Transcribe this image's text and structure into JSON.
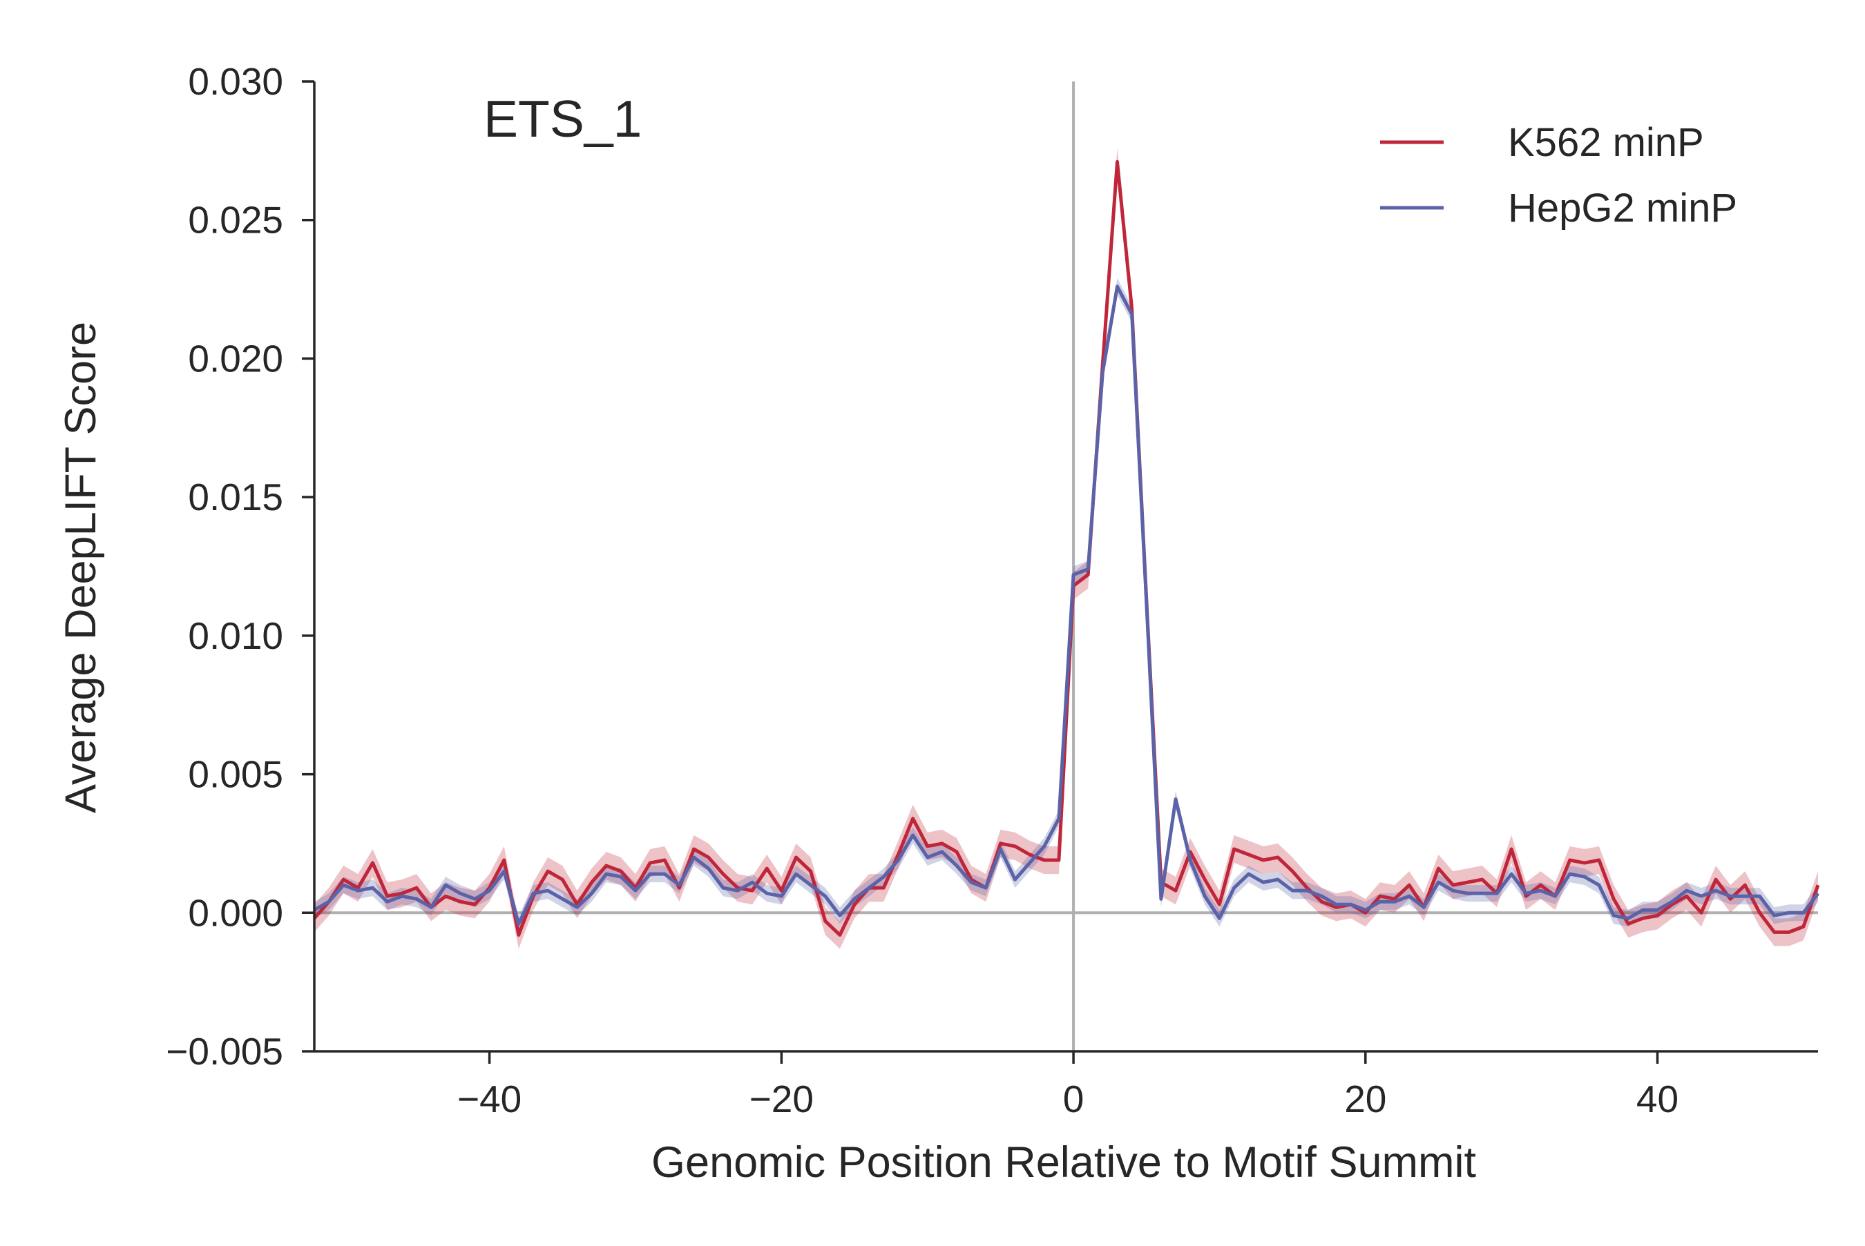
{
  "chart_data": {
    "type": "line",
    "title": "",
    "panel_label": "ETS_1",
    "xlabel": "Genomic Position Relative to Motif Summit",
    "ylabel": "Average DeepLIFT Score",
    "xlim": [
      -52,
      51
    ],
    "ylim": [
      -0.005,
      0.03
    ],
    "x_ticks": [
      -40,
      -20,
      0,
      20,
      40
    ],
    "x_tick_labels": [
      "−40",
      "−20",
      "0",
      "20",
      "40"
    ],
    "y_ticks": [
      -0.005,
      0,
      0.005,
      0.01,
      0.015,
      0.02,
      0.025,
      0.03
    ],
    "y_tick_labels": [
      "−0.005",
      "0.000",
      "0.005",
      "0.010",
      "0.015",
      "0.020",
      "0.025",
      "0.030"
    ],
    "grid": false,
    "reference_lines": {
      "vertical_at_x": 0,
      "horizontal_at_y": 0,
      "color": "#b0b0b0"
    },
    "legend": {
      "position": "top-right",
      "entries": [
        "K562 minP",
        "HepG2 minP"
      ]
    },
    "x": [
      -52,
      -51,
      -50,
      -49,
      -48,
      -47,
      -46,
      -45,
      -44,
      -43,
      -42,
      -41,
      -40,
      -39,
      -38,
      -37,
      -36,
      -35,
      -34,
      -33,
      -32,
      -31,
      -30,
      -29,
      -28,
      -27,
      -26,
      -25,
      -24,
      -23,
      -22,
      -21,
      -20,
      -19,
      -18,
      -17,
      -16,
      -15,
      -14,
      -13,
      -12,
      -11,
      -10,
      -9,
      -8,
      -7,
      -6,
      -5,
      -4,
      -3,
      -2,
      -1,
      0,
      1,
      2,
      3,
      4,
      5,
      6,
      7,
      8,
      9,
      10,
      11,
      12,
      13,
      14,
      15,
      16,
      17,
      18,
      19,
      20,
      21,
      22,
      23,
      24,
      25,
      26,
      27,
      28,
      29,
      30,
      31,
      32,
      33,
      34,
      35,
      36,
      37,
      38,
      39,
      40,
      41,
      42,
      43,
      44,
      45,
      46,
      47,
      48,
      49,
      50,
      51
    ],
    "series": [
      {
        "name": "K562 minP",
        "color": "#c0263a",
        "band_halfwidth": 0.0005,
        "values": [
          -0.0002,
          0.0004,
          0.0012,
          0.0009,
          0.0018,
          0.0006,
          0.0007,
          0.0009,
          0.0002,
          0.0006,
          0.0004,
          0.0003,
          0.0009,
          0.0019,
          -0.0008,
          0.0006,
          0.0015,
          0.0012,
          0.0003,
          0.0011,
          0.0017,
          0.0015,
          0.0009,
          0.0018,
          0.0019,
          0.0009,
          0.0023,
          0.002,
          0.0014,
          0.0009,
          0.0008,
          0.0016,
          0.0008,
          0.002,
          0.0015,
          -0.0003,
          -0.0008,
          0.0003,
          0.0009,
          0.0009,
          0.0021,
          0.0034,
          0.0024,
          0.0025,
          0.0022,
          0.0012,
          0.0009,
          0.0025,
          0.0024,
          0.0021,
          0.0019,
          0.0019,
          0.0118,
          0.0122,
          0.0198,
          0.0271,
          0.0218,
          0.0113,
          0.0011,
          0.0008,
          0.0022,
          0.0012,
          0.0003,
          0.0023,
          0.0021,
          0.0019,
          0.002,
          0.0015,
          0.0009,
          0.0004,
          0.0002,
          0.0003,
          0.0,
          0.0006,
          0.0005,
          0.001,
          0.0002,
          0.0016,
          0.001,
          0.0011,
          0.0012,
          0.0007,
          0.0023,
          0.0006,
          0.001,
          0.0006,
          0.0019,
          0.0018,
          0.0019,
          0.0005,
          -0.0004,
          -0.0002,
          -0.0001,
          0.0003,
          0.0006,
          0.0,
          0.0012,
          0.0005,
          0.001,
          0.0,
          -0.0007,
          -0.0007,
          -0.0005,
          0.001
        ]
      },
      {
        "name": "HepG2 minP",
        "color": "#5b63a8",
        "band_halfwidth": 0.0003,
        "values": [
          0.0001,
          0.0004,
          0.001,
          0.0008,
          0.0009,
          0.0004,
          0.0006,
          0.0005,
          0.0002,
          0.001,
          0.0007,
          0.0005,
          0.0008,
          0.0015,
          -0.0004,
          0.0007,
          0.0008,
          0.0005,
          0.0002,
          0.0007,
          0.0014,
          0.0013,
          0.0008,
          0.0014,
          0.0014,
          0.001,
          0.002,
          0.0016,
          0.0009,
          0.0008,
          0.0011,
          0.0007,
          0.0006,
          0.0014,
          0.001,
          0.0006,
          -0.0001,
          0.0005,
          0.0009,
          0.0013,
          0.0019,
          0.0028,
          0.002,
          0.0022,
          0.0017,
          0.0011,
          0.0009,
          0.0023,
          0.0012,
          0.0018,
          0.0024,
          0.0034,
          0.0122,
          0.0124,
          0.0195,
          0.0226,
          0.0216,
          0.0112,
          0.0005,
          0.0041,
          0.0019,
          0.0006,
          -0.0002,
          0.0009,
          0.0014,
          0.0011,
          0.0012,
          0.0008,
          0.0008,
          0.0006,
          0.0003,
          0.0003,
          0.0001,
          0.0004,
          0.0004,
          0.0006,
          0.0002,
          0.0011,
          0.0008,
          0.0007,
          0.0007,
          0.0007,
          0.0014,
          0.0007,
          0.0008,
          0.0006,
          0.0014,
          0.0013,
          0.001,
          -0.0001,
          -0.0002,
          0.0001,
          0.0001,
          0.0004,
          0.0008,
          0.0006,
          0.0008,
          0.0006,
          0.0006,
          0.0006,
          -0.0001,
          0.0,
          0.0,
          0.0007
        ]
      }
    ]
  }
}
